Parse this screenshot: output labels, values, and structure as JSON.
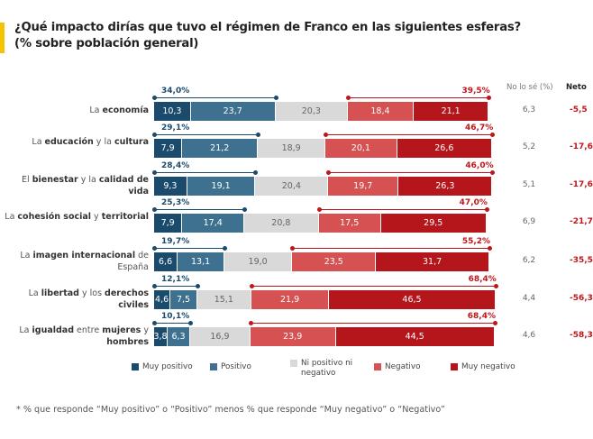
{
  "title_line1": "¿Qué impacto dirías que tuvo el régimen de Franco en las siguientes esferas?",
  "title_line2": "(% sobre población general)",
  "footnote": "* % que responde “Muy positivo” o “Positivo” menos % que responde “Muy negativo” o “Negativo”",
  "chart_data": {
    "type": "bar",
    "orientation": "horizontal-stacked",
    "column_headers": {
      "no_lo_se": "No lo sé (%)",
      "neto": "Neto"
    },
    "categories": [
      [
        {
          "t": "La ",
          "b": false
        },
        {
          "t": "economía",
          "b": true
        }
      ],
      [
        {
          "t": "La ",
          "b": false
        },
        {
          "t": "educación",
          "b": true
        },
        {
          "t": " y la ",
          "b": false
        },
        {
          "t": "cultura",
          "b": true
        }
      ],
      [
        {
          "t": "El ",
          "b": false
        },
        {
          "t": "bienestar",
          "b": true
        },
        {
          "t": " y la ",
          "b": false
        },
        {
          "t": "calidad de vida",
          "b": true
        }
      ],
      [
        {
          "t": "La ",
          "b": false
        },
        {
          "t": "cohesión social",
          "b": true
        },
        {
          "t": " y ",
          "b": false
        },
        {
          "t": "territorial",
          "b": true
        }
      ],
      [
        {
          "t": "La ",
          "b": false
        },
        {
          "t": "imagen internacional",
          "b": true
        },
        {
          "t": " de España",
          "b": false
        }
      ],
      [
        {
          "t": "La ",
          "b": false
        },
        {
          "t": "libertad",
          "b": true
        },
        {
          "t": " y los ",
          "b": false
        },
        {
          "t": "derechos civiles",
          "b": true
        }
      ],
      [
        {
          "t": "La ",
          "b": false
        },
        {
          "t": "igualdad",
          "b": true
        },
        {
          "t": " entre ",
          "b": false
        },
        {
          "t": "mujeres",
          "b": true
        },
        {
          "t": " y ",
          "b": false
        },
        {
          "t": "hombres",
          "b": true
        }
      ]
    ],
    "series": [
      {
        "name": "Muy positivo",
        "color": "#1b4b6c",
        "text_color": "#ffffff",
        "values": [
          "10,3",
          "7,9",
          "9,3",
          "7,9",
          "6,6",
          "4,6",
          "3,8"
        ]
      },
      {
        "name": "Positivo",
        "color": "#3e7190",
        "text_color": "#ffffff",
        "values": [
          "23,7",
          "21,2",
          "19,1",
          "17,4",
          "13,1",
          "7,5",
          "6,3"
        ]
      },
      {
        "name": "Ni positivo ni negativo",
        "color": "#d9d9d9",
        "text_color": "#666666",
        "values": [
          "20,3",
          "18,9",
          "20,4",
          "20,8",
          "19,0",
          "15,1",
          "16,9"
        ]
      },
      {
        "name": "Negativo",
        "color": "#d65252",
        "text_color": "#ffffff",
        "values": [
          "18,4",
          "20,1",
          "19,7",
          "17,5",
          "23,5",
          "21,9",
          "23,9"
        ]
      },
      {
        "name": "Muy negativo",
        "color": "#b5161b",
        "text_color": "#ffffff",
        "values": [
          "21,1",
          "26,6",
          "26,3",
          "29,5",
          "31,7",
          "46,5",
          "44,5"
        ]
      }
    ],
    "positive_total": [
      "34,0%",
      "29,1%",
      "28,4%",
      "25,3%",
      "19,7%",
      "12,1%",
      "10,1%"
    ],
    "negative_total": [
      "39,5%",
      "46,7%",
      "46,0%",
      "47,0%",
      "55,2%",
      "68,4%",
      "68,4%"
    ],
    "no_lo_se": [
      "6,3",
      "5,2",
      "5,1",
      "6,9",
      "6,2",
      "4,4",
      "4,6"
    ],
    "neto": [
      "-5,5",
      "-17,6",
      "-17,6",
      "-21,7",
      "-35,5",
      "-56,3",
      "-58,3"
    ],
    "legend_placement": "bottom",
    "colors": {
      "positive_bracket": "#1b4b6c",
      "negative_bracket": "#c0161b"
    }
  }
}
